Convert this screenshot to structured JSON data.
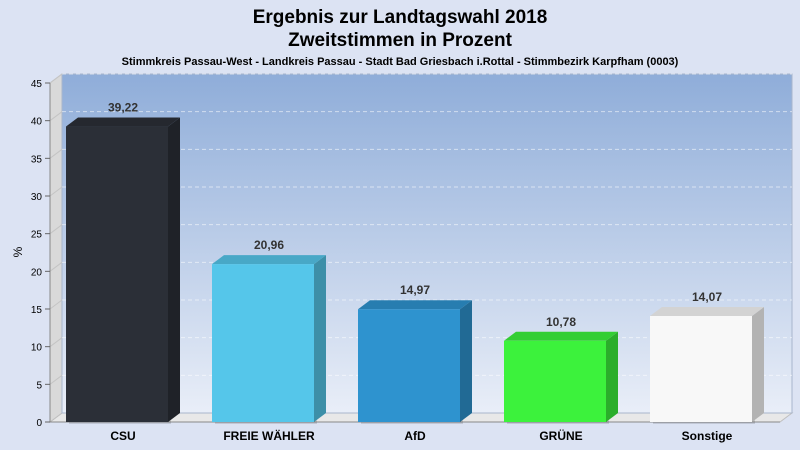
{
  "chart_data": {
    "type": "bar",
    "title_line1": "Ergebnis zur Landtagswahl 2018",
    "title_line2": "Zweitstimmen in Prozent",
    "subtitle": "Stimmkreis Passau-West - Landkreis Passau - Stadt Bad Griesbach i.Rottal - Stimmbezirk Karpfham (0003)",
    "ylabel": "%",
    "ylim": [
      0,
      45
    ],
    "yticks": [
      "0",
      "5",
      "10",
      "15",
      "20",
      "25",
      "30",
      "35",
      "40",
      "45"
    ],
    "categories": [
      "CSU",
      "FREIE WÄHLER",
      "AfD",
      "GRÜNE",
      "Sonstige"
    ],
    "values": [
      39.22,
      20.96,
      14.97,
      10.78,
      14.07
    ],
    "value_labels": [
      "39,22",
      "20,96",
      "14,97",
      "10,78",
      "14,07"
    ],
    "colors": [
      "#2b2f37",
      "#55c6ea",
      "#2e93cf",
      "#3cf23c",
      "#f8f8f8"
    ],
    "grid": true,
    "legend": "none"
  }
}
